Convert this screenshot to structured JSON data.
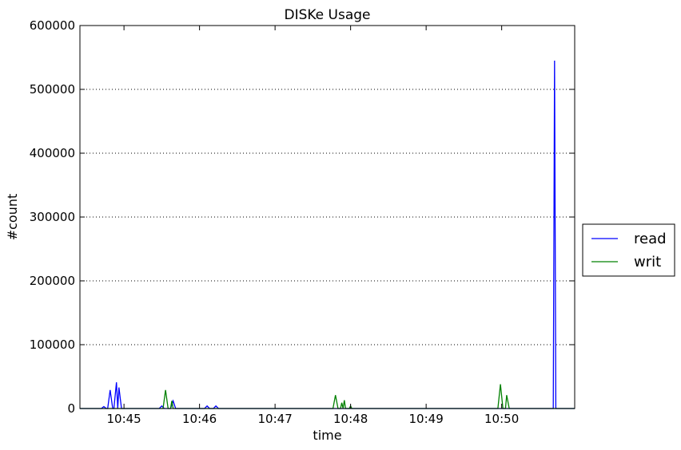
{
  "chart_data": {
    "type": "line",
    "title": "DISKe Usage",
    "xlabel": "time",
    "ylabel": "#count",
    "xlim": [
      "10:44:25",
      "10:50:58"
    ],
    "ylim": [
      0,
      600000
    ],
    "x_ticks": [
      "10:45",
      "10:46",
      "10:47",
      "10:48",
      "10:49",
      "10:50"
    ],
    "y_ticks": [
      0,
      100000,
      200000,
      300000,
      400000,
      500000,
      600000
    ],
    "grid": "horizontal dotted",
    "legend_position": "right, outside plot",
    "series": [
      {
        "name": "read",
        "color": "#0000ff",
        "points": [
          [
            "10:44:25",
            0
          ],
          [
            "10:44:42",
            0
          ],
          [
            "10:44:44",
            3000
          ],
          [
            "10:44:46",
            0
          ],
          [
            "10:44:47",
            0
          ],
          [
            "10:44:49",
            29000
          ],
          [
            "10:44:51",
            0
          ],
          [
            "10:44:52",
            0
          ],
          [
            "10:44:54",
            41000
          ],
          [
            "10:44:55",
            0
          ],
          [
            "10:44:56",
            33000
          ],
          [
            "10:44:58",
            0
          ],
          [
            "10:45:28",
            0
          ],
          [
            "10:45:30",
            4000
          ],
          [
            "10:45:32",
            0
          ],
          [
            "10:45:37",
            0
          ],
          [
            "10:45:39",
            12000
          ],
          [
            "10:45:41",
            0
          ],
          [
            "10:46:04",
            0
          ],
          [
            "10:46:06",
            4000
          ],
          [
            "10:46:08",
            0
          ],
          [
            "10:46:11",
            0
          ],
          [
            "10:46:13",
            4000
          ],
          [
            "10:46:15",
            0
          ],
          [
            "10:50:41",
            0
          ],
          [
            "10:50:42",
            545000
          ],
          [
            "10:50:43",
            0
          ],
          [
            "10:50:58",
            0
          ]
        ]
      },
      {
        "name": "writ",
        "color": "#008000",
        "points": [
          [
            "10:44:25",
            0
          ],
          [
            "10:45:31",
            0
          ],
          [
            "10:45:33",
            29000
          ],
          [
            "10:45:35",
            0
          ],
          [
            "10:45:37",
            0
          ],
          [
            "10:45:38",
            12000
          ],
          [
            "10:45:39",
            0
          ],
          [
            "10:47:46",
            0
          ],
          [
            "10:47:48",
            21000
          ],
          [
            "10:47:50",
            0
          ],
          [
            "10:47:52",
            0
          ],
          [
            "10:47:53",
            9000
          ],
          [
            "10:47:54",
            0
          ],
          [
            "10:47:55",
            13000
          ],
          [
            "10:47:56",
            0
          ],
          [
            "10:47:59",
            0
          ],
          [
            "10:48:00",
            4000
          ],
          [
            "10:48:01",
            0
          ],
          [
            "10:49:57",
            0
          ],
          [
            "10:49:59",
            38000
          ],
          [
            "10:50:01",
            0
          ],
          [
            "10:50:03",
            0
          ],
          [
            "10:50:04",
            21000
          ],
          [
            "10:50:06",
            0
          ],
          [
            "10:50:58",
            0
          ]
        ]
      }
    ]
  }
}
